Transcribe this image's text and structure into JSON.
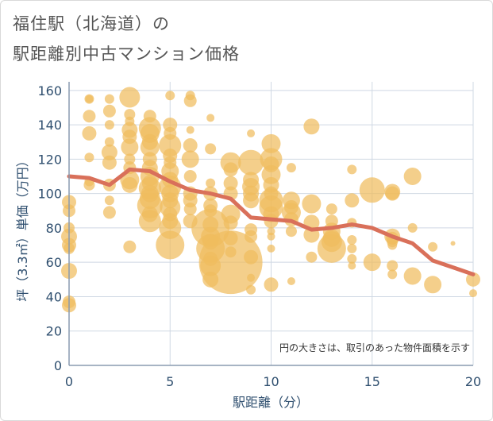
{
  "title_line1": "福住駅（北海道）の",
  "title_line2": "駅距離別中古マンション価格",
  "chart_data": {
    "type": "scatter",
    "xlabel": "駅距離（分）",
    "ylabel": "坪（3.3㎡）単価（万円）",
    "xlim": [
      0,
      20
    ],
    "ylim": [
      0,
      165
    ],
    "xticks": [
      "0",
      "5",
      "10",
      "15",
      "20"
    ],
    "yticks": [
      "0",
      "20",
      "40",
      "60",
      "80",
      "100",
      "120",
      "140",
      "160"
    ],
    "xtick_values": [
      0,
      5,
      10,
      15,
      20
    ],
    "ytick_values": [
      0,
      20,
      40,
      60,
      80,
      100,
      120,
      140,
      160
    ],
    "grid": true,
    "note": "円の大きさは、取引のあった物件面積を示す",
    "bubble_color": "#f0bc5e",
    "line_color": "#d9705a",
    "trend_line": {
      "x": [
        0,
        1,
        2,
        3,
        4,
        5,
        6,
        7,
        8,
        9,
        10,
        11,
        12,
        13,
        14,
        15,
        16,
        17,
        18,
        19,
        20
      ],
      "y": [
        110,
        109,
        105,
        114,
        113,
        107,
        102,
        100,
        97,
        86,
        85,
        84,
        79,
        80,
        82,
        80,
        75,
        71,
        61,
        57,
        53
      ]
    },
    "points": [
      {
        "x": 0,
        "y": 95,
        "r": 9
      },
      {
        "x": 0,
        "y": 90,
        "r": 8
      },
      {
        "x": 0,
        "y": 80,
        "r": 7
      },
      {
        "x": 0,
        "y": 75,
        "r": 10
      },
      {
        "x": 0,
        "y": 70,
        "r": 9
      },
      {
        "x": 0,
        "y": 68,
        "r": 7
      },
      {
        "x": 0,
        "y": 55,
        "r": 10
      },
      {
        "x": 0,
        "y": 37,
        "r": 8
      },
      {
        "x": 0,
        "y": 35,
        "r": 9
      },
      {
        "x": 1,
        "y": 155,
        "r": 6
      },
      {
        "x": 1,
        "y": 155,
        "r": 5
      },
      {
        "x": 1,
        "y": 145,
        "r": 8
      },
      {
        "x": 1,
        "y": 135,
        "r": 9
      },
      {
        "x": 1,
        "y": 121,
        "r": 6
      },
      {
        "x": 1,
        "y": 107,
        "r": 6
      },
      {
        "x": 1,
        "y": 105,
        "r": 7
      },
      {
        "x": 2,
        "y": 155,
        "r": 6
      },
      {
        "x": 2,
        "y": 148,
        "r": 8
      },
      {
        "x": 2,
        "y": 140,
        "r": 6
      },
      {
        "x": 2,
        "y": 130,
        "r": 6
      },
      {
        "x": 2,
        "y": 124,
        "r": 10
      },
      {
        "x": 2,
        "y": 118,
        "r": 9
      },
      {
        "x": 2,
        "y": 105,
        "r": 8
      },
      {
        "x": 2,
        "y": 96,
        "r": 6
      },
      {
        "x": 2,
        "y": 89,
        "r": 8
      },
      {
        "x": 3,
        "y": 156,
        "r": 13
      },
      {
        "x": 3,
        "y": 146,
        "r": 7
      },
      {
        "x": 3,
        "y": 142,
        "r": 6
      },
      {
        "x": 3,
        "y": 137,
        "r": 10
      },
      {
        "x": 3,
        "y": 133,
        "r": 9
      },
      {
        "x": 3,
        "y": 127,
        "r": 11
      },
      {
        "x": 3,
        "y": 120,
        "r": 7
      },
      {
        "x": 3,
        "y": 115,
        "r": 8
      },
      {
        "x": 3,
        "y": 108,
        "r": 12
      },
      {
        "x": 3,
        "y": 105,
        "r": 10
      },
      {
        "x": 3,
        "y": 69,
        "r": 8
      },
      {
        "x": 4,
        "y": 145,
        "r": 8
      },
      {
        "x": 4,
        "y": 138,
        "r": 14
      },
      {
        "x": 4,
        "y": 135,
        "r": 12
      },
      {
        "x": 4,
        "y": 130,
        "r": 10
      },
      {
        "x": 4,
        "y": 127,
        "r": 12
      },
      {
        "x": 4,
        "y": 120,
        "r": 9
      },
      {
        "x": 4,
        "y": 115,
        "r": 10
      },
      {
        "x": 4,
        "y": 110,
        "r": 12
      },
      {
        "x": 4,
        "y": 106,
        "r": 10
      },
      {
        "x": 4,
        "y": 103,
        "r": 14
      },
      {
        "x": 4,
        "y": 100,
        "r": 11
      },
      {
        "x": 4,
        "y": 97,
        "r": 13
      },
      {
        "x": 4,
        "y": 93,
        "r": 16
      },
      {
        "x": 4,
        "y": 88,
        "r": 10
      },
      {
        "x": 4,
        "y": 84,
        "r": 14
      },
      {
        "x": 5,
        "y": 157,
        "r": 6
      },
      {
        "x": 5,
        "y": 140,
        "r": 9
      },
      {
        "x": 5,
        "y": 135,
        "r": 8
      },
      {
        "x": 5,
        "y": 128,
        "r": 14
      },
      {
        "x": 5,
        "y": 122,
        "r": 9
      },
      {
        "x": 5,
        "y": 118,
        "r": 8
      },
      {
        "x": 5,
        "y": 113,
        "r": 11
      },
      {
        "x": 5,
        "y": 108,
        "r": 10
      },
      {
        "x": 5,
        "y": 104,
        "r": 14
      },
      {
        "x": 5,
        "y": 100,
        "r": 11
      },
      {
        "x": 5,
        "y": 96,
        "r": 10
      },
      {
        "x": 5,
        "y": 92,
        "r": 13
      },
      {
        "x": 5,
        "y": 88,
        "r": 9
      },
      {
        "x": 5,
        "y": 84,
        "r": 10
      },
      {
        "x": 5,
        "y": 80,
        "r": 14
      },
      {
        "x": 5,
        "y": 70,
        "r": 18
      },
      {
        "x": 6,
        "y": 157,
        "r": 6
      },
      {
        "x": 6,
        "y": 154,
        "r": 8
      },
      {
        "x": 6,
        "y": 137,
        "r": 5
      },
      {
        "x": 6,
        "y": 128,
        "r": 9
      },
      {
        "x": 6,
        "y": 120,
        "r": 11
      },
      {
        "x": 6,
        "y": 110,
        "r": 8
      },
      {
        "x": 6,
        "y": 100,
        "r": 9
      },
      {
        "x": 6,
        "y": 96,
        "r": 9
      },
      {
        "x": 6,
        "y": 91,
        "r": 8
      },
      {
        "x": 6,
        "y": 84,
        "r": 9
      },
      {
        "x": 7,
        "y": 144,
        "r": 5
      },
      {
        "x": 7,
        "y": 126,
        "r": 7
      },
      {
        "x": 7,
        "y": 106,
        "r": 6
      },
      {
        "x": 7,
        "y": 100,
        "r": 9
      },
      {
        "x": 7,
        "y": 93,
        "r": 9
      },
      {
        "x": 7,
        "y": 90,
        "r": 8
      },
      {
        "x": 7,
        "y": 82,
        "r": 10
      },
      {
        "x": 7,
        "y": 80,
        "r": 24
      },
      {
        "x": 7,
        "y": 75,
        "r": 12
      },
      {
        "x": 7,
        "y": 72,
        "r": 10
      },
      {
        "x": 7,
        "y": 68,
        "r": 18
      },
      {
        "x": 7,
        "y": 62,
        "r": 9
      },
      {
        "x": 7,
        "y": 58,
        "r": 13
      },
      {
        "x": 7,
        "y": 50,
        "r": 10
      },
      {
        "x": 8,
        "y": 118,
        "r": 13
      },
      {
        "x": 8,
        "y": 114,
        "r": 9
      },
      {
        "x": 8,
        "y": 106,
        "r": 9
      },
      {
        "x": 8,
        "y": 100,
        "r": 9
      },
      {
        "x": 8,
        "y": 88,
        "r": 12
      },
      {
        "x": 8,
        "y": 83,
        "r": 9
      },
      {
        "x": 8,
        "y": 74,
        "r": 9
      },
      {
        "x": 8,
        "y": 66,
        "r": 7
      },
      {
        "x": 8,
        "y": 60,
        "r": 40
      },
      {
        "x": 9,
        "y": 135,
        "r": 5
      },
      {
        "x": 9,
        "y": 118,
        "r": 16
      },
      {
        "x": 9,
        "y": 108,
        "r": 10
      },
      {
        "x": 9,
        "y": 104,
        "r": 11
      },
      {
        "x": 9,
        "y": 100,
        "r": 10
      },
      {
        "x": 9,
        "y": 96,
        "r": 10
      },
      {
        "x": 9,
        "y": 79,
        "r": 8
      },
      {
        "x": 9,
        "y": 75,
        "r": 8
      },
      {
        "x": 9,
        "y": 63,
        "r": 9
      },
      {
        "x": 9,
        "y": 51,
        "r": 5
      },
      {
        "x": 9,
        "y": 44,
        "r": 6
      },
      {
        "x": 10,
        "y": 129,
        "r": 12
      },
      {
        "x": 10,
        "y": 120,
        "r": 14
      },
      {
        "x": 10,
        "y": 117,
        "r": 10
      },
      {
        "x": 10,
        "y": 111,
        "r": 12
      },
      {
        "x": 10,
        "y": 105,
        "r": 10
      },
      {
        "x": 10,
        "y": 100,
        "r": 9
      },
      {
        "x": 10,
        "y": 96,
        "r": 15
      },
      {
        "x": 10,
        "y": 92,
        "r": 15
      },
      {
        "x": 10,
        "y": 88,
        "r": 10
      },
      {
        "x": 10,
        "y": 84,
        "r": 9
      },
      {
        "x": 10,
        "y": 78,
        "r": 5
      },
      {
        "x": 10,
        "y": 75,
        "r": 5
      },
      {
        "x": 10,
        "y": 68,
        "r": 5
      },
      {
        "x": 10,
        "y": 47,
        "r": 9
      },
      {
        "x": 11,
        "y": 115,
        "r": 6
      },
      {
        "x": 11,
        "y": 96,
        "r": 11
      },
      {
        "x": 11,
        "y": 92,
        "r": 9
      },
      {
        "x": 11,
        "y": 89,
        "r": 12
      },
      {
        "x": 11,
        "y": 85,
        "r": 9
      },
      {
        "x": 11,
        "y": 78,
        "r": 7
      },
      {
        "x": 11,
        "y": 49,
        "r": 5
      },
      {
        "x": 12,
        "y": 139,
        "r": 10
      },
      {
        "x": 12,
        "y": 94,
        "r": 12
      },
      {
        "x": 12,
        "y": 83,
        "r": 10
      },
      {
        "x": 12,
        "y": 76,
        "r": 10
      },
      {
        "x": 12,
        "y": 63,
        "r": 7
      },
      {
        "x": 13,
        "y": 91,
        "r": 7
      },
      {
        "x": 13,
        "y": 84,
        "r": 8
      },
      {
        "x": 13,
        "y": 78,
        "r": 11
      },
      {
        "x": 13,
        "y": 74,
        "r": 11
      },
      {
        "x": 13,
        "y": 72,
        "r": 13
      },
      {
        "x": 13,
        "y": 68,
        "r": 18
      },
      {
        "x": 14,
        "y": 114,
        "r": 6
      },
      {
        "x": 14,
        "y": 96,
        "r": 9
      },
      {
        "x": 14,
        "y": 83,
        "r": 6
      },
      {
        "x": 14,
        "y": 73,
        "r": 6
      },
      {
        "x": 14,
        "y": 68,
        "r": 6
      },
      {
        "x": 14,
        "y": 62,
        "r": 6
      },
      {
        "x": 14,
        "y": 58,
        "r": 5
      },
      {
        "x": 15,
        "y": 102,
        "r": 16
      },
      {
        "x": 15,
        "y": 60,
        "r": 11
      },
      {
        "x": 16,
        "y": 101,
        "r": 10
      },
      {
        "x": 16,
        "y": 100,
        "r": 9
      },
      {
        "x": 16,
        "y": 75,
        "r": 10
      },
      {
        "x": 16,
        "y": 74,
        "r": 8
      },
      {
        "x": 16,
        "y": 72,
        "r": 7
      },
      {
        "x": 16,
        "y": 70,
        "r": 6
      },
      {
        "x": 16,
        "y": 58,
        "r": 7
      },
      {
        "x": 16,
        "y": 53,
        "r": 6
      },
      {
        "x": 17,
        "y": 110,
        "r": 11
      },
      {
        "x": 17,
        "y": 80,
        "r": 6
      },
      {
        "x": 17,
        "y": 52,
        "r": 11
      },
      {
        "x": 18,
        "y": 69,
        "r": 6
      },
      {
        "x": 18,
        "y": 47,
        "r": 11
      },
      {
        "x": 19,
        "y": 71,
        "r": 3
      },
      {
        "x": 20,
        "y": 50,
        "r": 9
      },
      {
        "x": 20,
        "y": 42,
        "r": 5
      }
    ]
  }
}
